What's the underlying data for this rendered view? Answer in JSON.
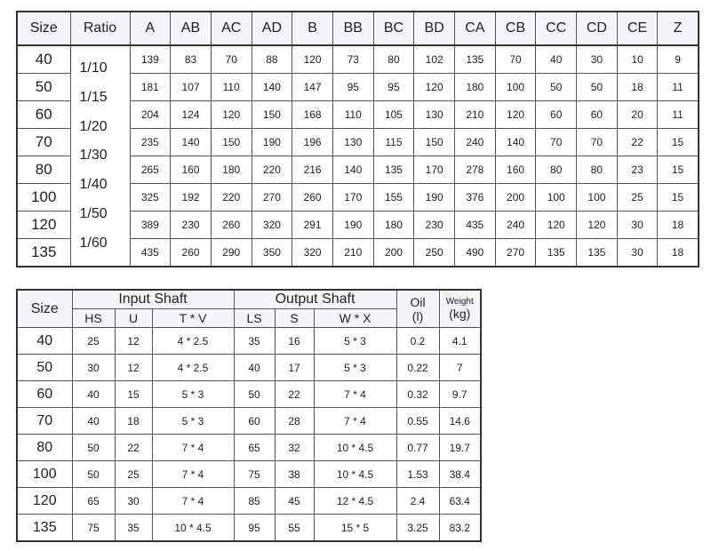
{
  "table1": {
    "headers": [
      "Size",
      "Ratio",
      "A",
      "AB",
      "AC",
      "AD",
      "B",
      "BB",
      "BC",
      "BD",
      "CA",
      "CB",
      "CC",
      "CD",
      "CE",
      "Z"
    ],
    "ratios": [
      "1/10",
      "1/15",
      "1/20",
      "1/30",
      "1/40",
      "1/50",
      "1/60"
    ],
    "rows": [
      [
        40,
        139,
        83,
        70,
        88,
        120,
        73,
        80,
        102,
        135,
        70,
        40,
        30,
        10,
        9
      ],
      [
        50,
        181,
        107,
        110,
        140,
        147,
        95,
        95,
        120,
        180,
        100,
        50,
        50,
        18,
        11
      ],
      [
        60,
        204,
        124,
        120,
        150,
        168,
        110,
        105,
        130,
        210,
        120,
        60,
        60,
        20,
        11
      ],
      [
        70,
        235,
        140,
        150,
        190,
        196,
        130,
        115,
        150,
        240,
        140,
        70,
        70,
        22,
        15
      ],
      [
        80,
        265,
        160,
        180,
        220,
        216,
        140,
        135,
        170,
        278,
        160,
        80,
        80,
        23,
        15
      ],
      [
        100,
        325,
        192,
        220,
        270,
        260,
        170,
        155,
        190,
        376,
        200,
        100,
        100,
        25,
        15
      ],
      [
        120,
        389,
        230,
        260,
        320,
        291,
        190,
        180,
        230,
        435,
        240,
        120,
        120,
        30,
        18
      ],
      [
        135,
        435,
        260,
        290,
        350,
        320,
        210,
        200,
        250,
        490,
        270,
        135,
        135,
        30,
        18
      ]
    ]
  },
  "table2": {
    "size": "Size",
    "groups": [
      "Input Shaft",
      "Output Shaft"
    ],
    "subheaders": [
      "HS",
      "U",
      "T * V",
      "LS",
      "S",
      "W * X"
    ],
    "oil": [
      "Oil",
      "(l)"
    ],
    "weight": [
      "Weight",
      "(kg)"
    ],
    "rows": [
      [
        40,
        25,
        12,
        "4 * 2.5",
        35,
        16,
        "5 * 3",
        0.2,
        4.1
      ],
      [
        50,
        30,
        12,
        "4 * 2.5",
        40,
        17,
        "5 * 3",
        0.22,
        7
      ],
      [
        60,
        40,
        15,
        "5 * 3",
        50,
        22,
        "7 * 4",
        0.32,
        9.7
      ],
      [
        70,
        40,
        18,
        "5 * 3",
        60,
        28,
        "7 * 4",
        0.55,
        14.6
      ],
      [
        80,
        50,
        22,
        "7 * 4",
        65,
        32,
        "10 * 4.5",
        0.77,
        19.7
      ],
      [
        100,
        50,
        25,
        "7 * 4",
        75,
        38,
        "10 * 4.5",
        1.53,
        38.4
      ],
      [
        120,
        65,
        30,
        "7 * 4",
        85,
        45,
        "12 * 4.5",
        2.4,
        63.4
      ],
      [
        135,
        75,
        35,
        "10 * 4.5",
        95,
        55,
        "15 * 5",
        3.25,
        83.2
      ]
    ]
  }
}
